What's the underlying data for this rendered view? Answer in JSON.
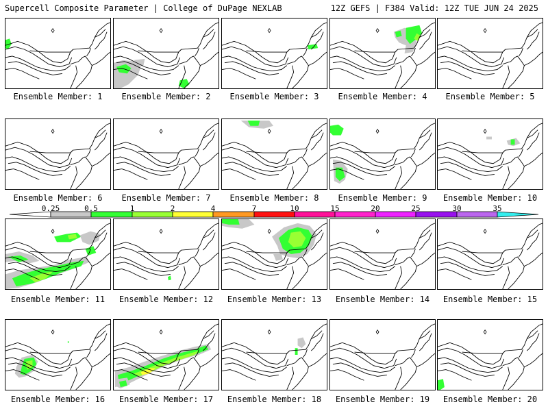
{
  "header": {
    "left": "Supercell Composite Parameter | College of DuPage NEXLAB",
    "right": "12Z GEFS | F384 Valid: 12Z TUE JUN 24 2025"
  },
  "colors": {
    "c1": "#c8c8c8",
    "c2": "#33ff33",
    "c3": "#99ff33",
    "c4": "#ffff33",
    "c5": "#ff9922",
    "c6": "#ff1111",
    "c7": "#ff1199",
    "c8": "#ff22cc",
    "c9": "#ee22ff",
    "c10": "#9911ee",
    "c11": "#bb66ee",
    "c12": "#33eeee"
  },
  "colorbar": {
    "labels": [
      "0.25",
      "0.5",
      "1",
      "2",
      "4",
      "7",
      "10",
      "15",
      "20",
      "25",
      "30",
      "35"
    ],
    "bins": [
      {
        "from": "0.25",
        "to": "0.5",
        "color": "#c8c8c8"
      },
      {
        "from": "0.5",
        "to": "1",
        "color": "#33ff33"
      },
      {
        "from": "1",
        "to": "2",
        "color": "#99ff33"
      },
      {
        "from": "2",
        "to": "4",
        "color": "#ffff33"
      },
      {
        "from": "4",
        "to": "7",
        "color": "#ff9922"
      },
      {
        "from": "7",
        "to": "10",
        "color": "#ff1111"
      },
      {
        "from": "10",
        "to": "15",
        "color": "#ff1199"
      },
      {
        "from": "15",
        "to": "20",
        "color": "#ff22cc"
      },
      {
        "from": "20",
        "to": "25",
        "color": "#ee22ff"
      },
      {
        "from": "25",
        "to": "30",
        "color": "#9911ee"
      },
      {
        "from": "30",
        "to": "35",
        "color": "#bb66ee"
      },
      {
        "from": "35",
        "to": "",
        "color": "#33eeee"
      }
    ]
  },
  "members": [
    {
      "label": "Ensemble Member: 1"
    },
    {
      "label": "Ensemble Member: 2"
    },
    {
      "label": "Ensemble Member: 3"
    },
    {
      "label": "Ensemble Member: 4"
    },
    {
      "label": "Ensemble Member: 5"
    },
    {
      "label": "Ensemble Member: 6"
    },
    {
      "label": "Ensemble Member: 7"
    },
    {
      "label": "Ensemble Member: 8"
    },
    {
      "label": "Ensemble Member: 9"
    },
    {
      "label": "Ensemble Member: 10"
    },
    {
      "label": "Ensemble Member: 11"
    },
    {
      "label": "Ensemble Member: 12"
    },
    {
      "label": "Ensemble Member: 13"
    },
    {
      "label": "Ensemble Member: 14"
    },
    {
      "label": "Ensemble Member: 15"
    },
    {
      "label": "Ensemble Member: 16"
    },
    {
      "label": "Ensemble Member: 17"
    },
    {
      "label": "Ensemble Member: 18"
    },
    {
      "label": "Ensemble Member: 19"
    },
    {
      "label": "Ensemble Member: 20"
    }
  ]
}
